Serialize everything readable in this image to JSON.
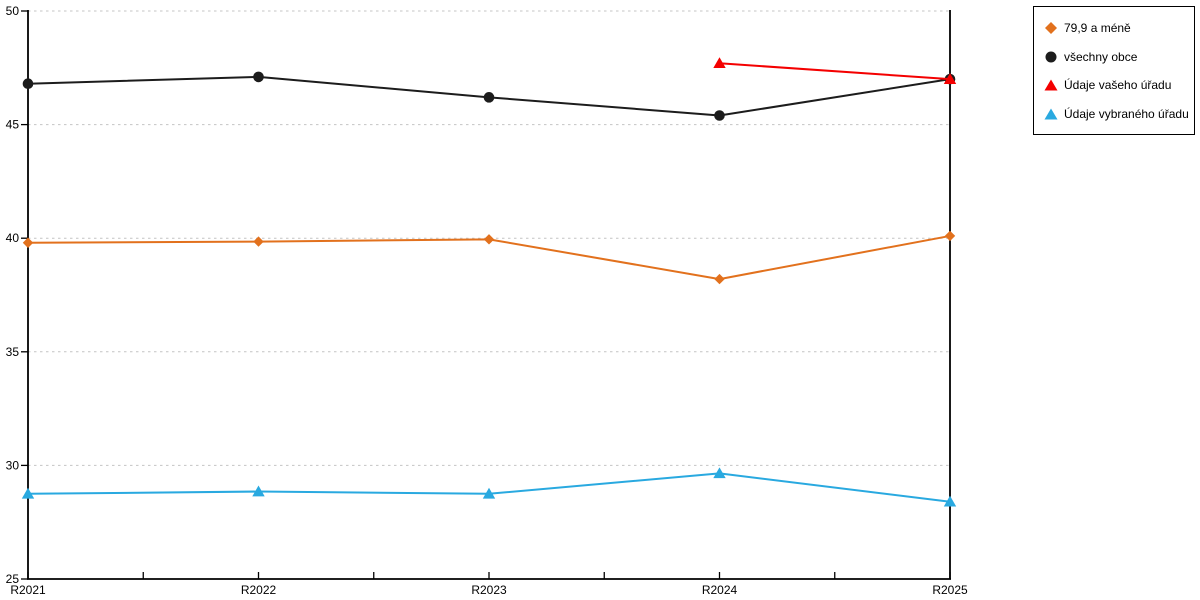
{
  "chart_data": {
    "type": "line",
    "title": "",
    "xlabel": "",
    "ylabel": "",
    "x_categories": [
      "R2021",
      "R2022",
      "R2023",
      "R2024",
      "R2025"
    ],
    "y_axis": {
      "min": 25,
      "max": 50,
      "tick_step": 5,
      "tick_values": [
        25,
        30,
        35,
        40,
        45,
        50
      ],
      "tick_labels": [
        "25",
        "30",
        "35",
        "40",
        "45",
        "50"
      ]
    },
    "grid": {
      "show": true,
      "values": [
        30,
        35,
        40,
        45,
        50
      ],
      "style": "dashed",
      "color": "#c4c4c4"
    },
    "legend": {
      "position": "top-right",
      "border_color": "#000000",
      "background": "#ffffff"
    },
    "axis_color": "#000000",
    "series": [
      {
        "name": "79,9 a méně",
        "color": "#e2711d",
        "marker": "diamond",
        "values": [
          39.8,
          39.85,
          39.95,
          38.2,
          40.1
        ]
      },
      {
        "name": "všechny obce",
        "color": "#1c1c1c",
        "marker": "circle",
        "values": [
          46.8,
          47.1,
          46.2,
          45.4,
          47.0
        ]
      },
      {
        "name": "Údaje vašeho úřadu",
        "color": "#f40000",
        "marker": "triangle",
        "values": [
          null,
          null,
          null,
          47.7,
          47.0
        ]
      },
      {
        "name": "Údaje vybraného úřadu",
        "color": "#29a9e0",
        "marker": "triangle",
        "values": [
          28.75,
          28.85,
          28.75,
          29.65,
          28.4
        ]
      }
    ]
  }
}
